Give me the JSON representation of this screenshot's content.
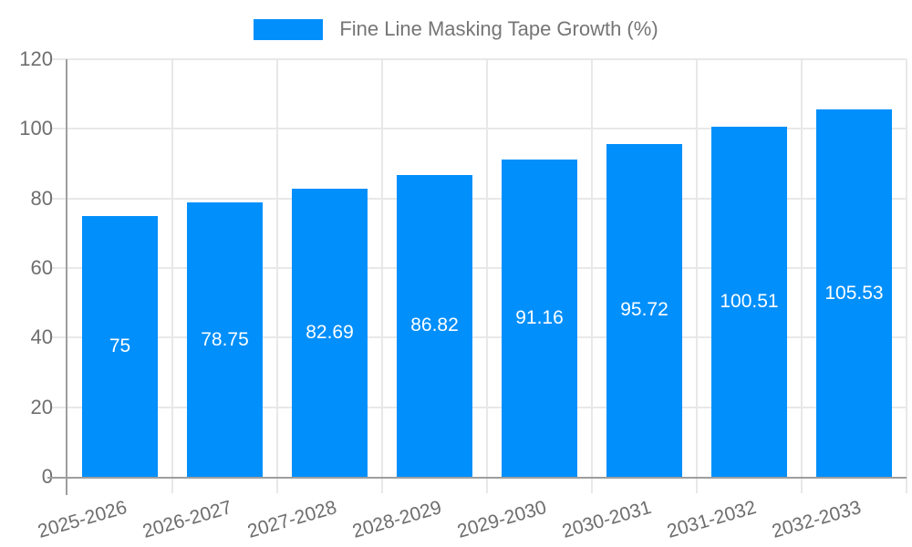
{
  "legend": {
    "label": "Fine Line Masking Tape Growth (%)"
  },
  "chart_data": {
    "type": "bar",
    "title": "Fine Line Masking Tape Growth (%)",
    "legend_label": "Fine Line Masking Tape Growth (%)",
    "legend_position": "top-center",
    "categories": [
      "2025-2026",
      "2026-2027",
      "2027-2028",
      "2028-2029",
      "2029-2030",
      "2030-2031",
      "2031-2032",
      "2032-2033"
    ],
    "values": [
      75,
      78.75,
      82.69,
      86.82,
      91.16,
      95.72,
      100.51,
      105.53
    ],
    "value_labels": [
      "75",
      "78.75",
      "82.69",
      "86.82",
      "91.16",
      "95.72",
      "100.51",
      "105.53"
    ],
    "xlabel": "",
    "ylabel": "",
    "ylim": [
      0,
      120
    ],
    "yticks": [
      0,
      20,
      40,
      60,
      80,
      100,
      120
    ],
    "grid": true,
    "bar_color": "#008FFB",
    "value_label_color": "#ffffff"
  },
  "colors": {
    "background": "#ffffff",
    "bar": "#008FFB",
    "gridline": "#e8e8e8",
    "axis": "#9e9e9e",
    "tick_label": "#6e6e6e",
    "legend_text": "#757575",
    "value_label": "#ffffff"
  }
}
